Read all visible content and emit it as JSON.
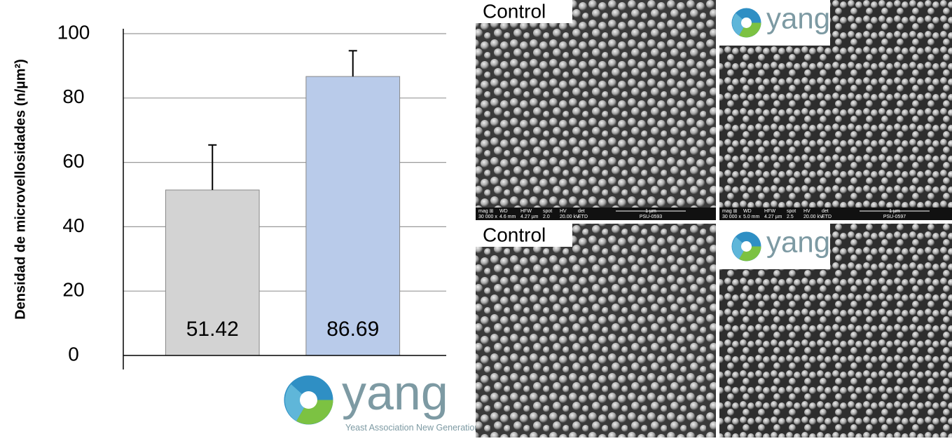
{
  "chart_data": {
    "type": "bar",
    "y_label": "Densidad de microvellosidades (n/µm²)",
    "categories": [
      null,
      null
    ],
    "values": [
      51.42,
      86.69
    ],
    "errors": [
      14,
      8
    ],
    "colors": [
      "#d3d3d3",
      "#b9cbea"
    ],
    "ylim": [
      0,
      100
    ],
    "yticks": [
      0,
      20,
      40,
      60,
      80,
      100
    ],
    "grid": true
  },
  "logo": {
    "name": "yang",
    "tagline": "Yeast Association New Generation"
  },
  "sem_info_headers": [
    "mag ⊞",
    "WD",
    "HFW",
    "spot",
    "HV",
    "det",
    "1 µm"
  ],
  "panels": [
    {
      "label": "Control",
      "info": [
        "30 000 x",
        "4.6 mm",
        "4.27 µm",
        "2.0",
        "20.00 kV",
        "ETD"
      ],
      "id": "PSU-0593"
    },
    {
      "info": [
        "30 000 x",
        "5.0 mm",
        "4.27 µm",
        "2.5",
        "20.00 kV",
        "ETD"
      ],
      "id": "PSU-0597"
    },
    {
      "label": "Control"
    },
    {}
  ]
}
